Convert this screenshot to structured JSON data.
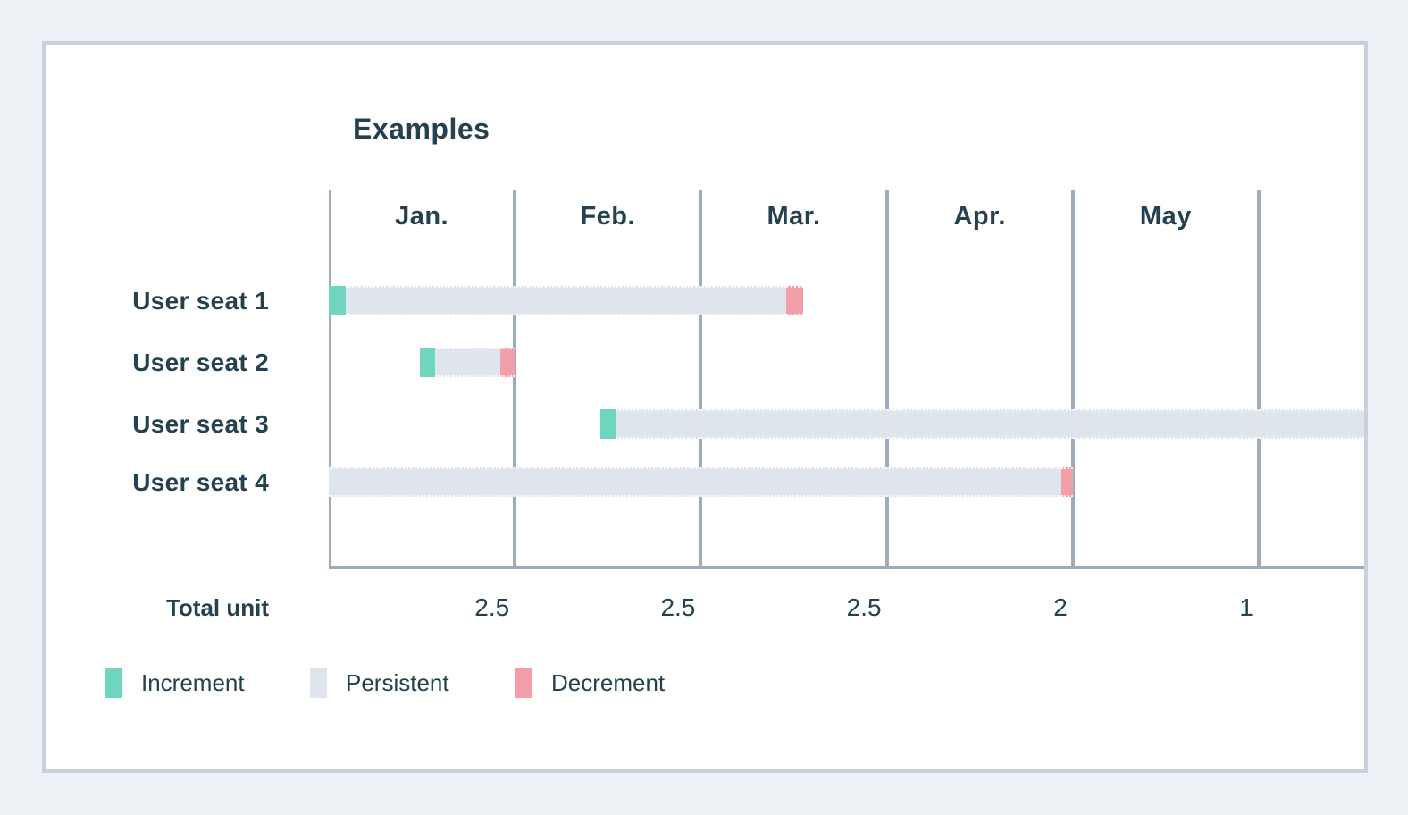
{
  "colors": {
    "page_background": "#edf2f7",
    "card_background": "#ffffff",
    "card_border": "#c6d1dc",
    "gridline": "#9dabbb",
    "text": "#25404f",
    "increment": "#70d6c0",
    "persistent": "#dfe5ed",
    "decrement": "#f39fa9"
  },
  "chart_data": {
    "type": "gantt",
    "title": "Examples",
    "x_axis": {
      "unit": "month",
      "labels": [
        "Jan.",
        "Feb.",
        "Mar.",
        "Apr.",
        "May"
      ],
      "gridlines_at": [
        0,
        1,
        2,
        3,
        4,
        5
      ],
      "range": [
        0,
        5.57
      ],
      "note": "plot extends about half a month past the May gridline; grid on, vertical lines only, bottom axis line"
    },
    "rows": [
      {
        "label": "User seat 1",
        "segments": [
          {
            "kind": "increment",
            "start": 0.0,
            "end": 0.09
          },
          {
            "kind": "persistent",
            "start": 0.09,
            "end": 2.46
          },
          {
            "kind": "decrement",
            "start": 2.46,
            "end": 2.55
          }
        ]
      },
      {
        "label": "User seat 2",
        "segments": [
          {
            "kind": "increment",
            "start": 0.49,
            "end": 0.57
          },
          {
            "kind": "persistent",
            "start": 0.57,
            "end": 0.92
          },
          {
            "kind": "decrement",
            "start": 0.92,
            "end": 1.0
          }
        ]
      },
      {
        "label": "User seat 3",
        "segments": [
          {
            "kind": "increment",
            "start": 1.46,
            "end": 1.54
          },
          {
            "kind": "persistent",
            "start": 1.54,
            "end": 5.7,
            "clipped_at_right_edge": true
          }
        ]
      },
      {
        "label": "User seat 4",
        "segments": [
          {
            "kind": "persistent",
            "start": 0.0,
            "end": 3.94
          },
          {
            "kind": "decrement",
            "start": 3.94,
            "end": 4.0
          }
        ]
      }
    ],
    "totals": {
      "label": "Total unit",
      "values": [
        {
          "month": "Jan.",
          "value": "2.5"
        },
        {
          "month": "Feb.",
          "value": "2.5"
        },
        {
          "month": "Mar.",
          "value": "2.5"
        },
        {
          "month": "Apr.",
          "value": "2"
        },
        {
          "month": "May",
          "value": "1"
        }
      ]
    },
    "legend": {
      "position": "bottom-left",
      "items": [
        {
          "label": "Increment",
          "color_key": "increment"
        },
        {
          "label": "Persistent",
          "color_key": "persistent"
        },
        {
          "label": "Decrement",
          "color_key": "decrement"
        }
      ]
    }
  }
}
